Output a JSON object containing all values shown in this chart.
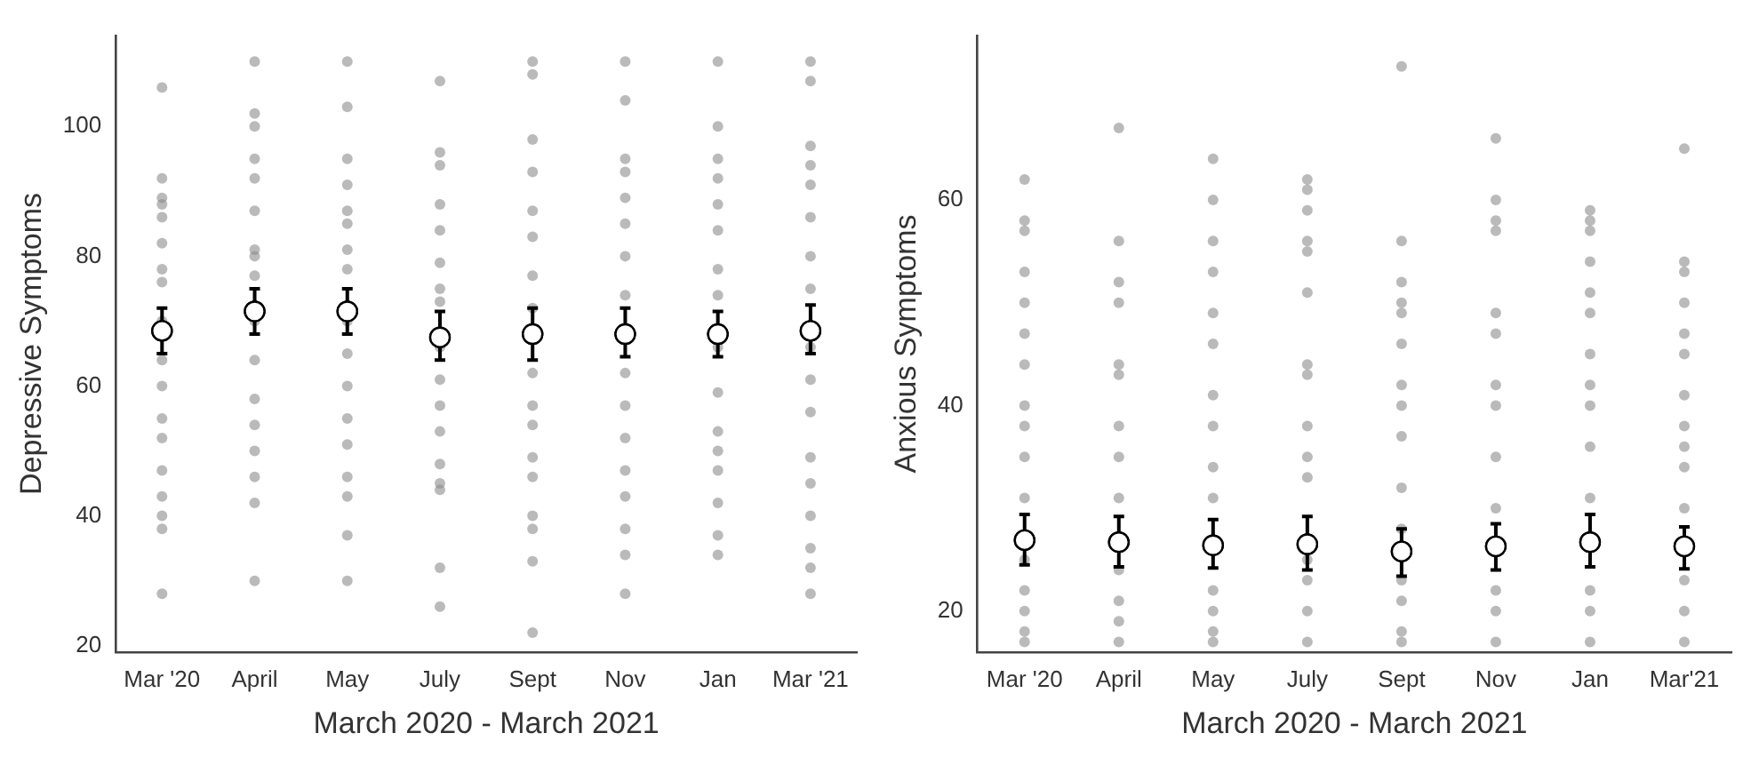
{
  "chart_data": [
    {
      "type": "scatter",
      "xlabel": "March 2020 - March 2021",
      "ylabel": "Depressive Symptoms",
      "categories": [
        "Mar '20",
        "April",
        "May",
        "July",
        "Sept",
        "Nov",
        "Jan",
        "Mar '21"
      ],
      "ylim": [
        19,
        114
      ],
      "yticks": [
        20,
        40,
        60,
        80,
        100
      ],
      "marker": "circle",
      "series": [
        {
          "type": "scatter",
          "color": "#8c8c8c",
          "x": [
            "Mar '20",
            "Mar '20",
            "Mar '20",
            "Mar '20",
            "Mar '20",
            "Mar '20",
            "Mar '20",
            "Mar '20",
            "Mar '20",
            "Mar '20",
            "Mar '20",
            "Mar '20",
            "Mar '20",
            "Mar '20",
            "Mar '20",
            "Mar '20",
            "Mar '20",
            "Mar '20",
            "April",
            "April",
            "April",
            "April",
            "April",
            "April",
            "April",
            "April",
            "April",
            "April",
            "April",
            "April",
            "April",
            "April",
            "April",
            "April",
            "April",
            "May",
            "May",
            "May",
            "May",
            "May",
            "May",
            "May",
            "May",
            "May",
            "May",
            "May",
            "May",
            "May",
            "May",
            "May",
            "May",
            "May",
            "July",
            "July",
            "July",
            "July",
            "July",
            "July",
            "July",
            "July",
            "July",
            "July",
            "July",
            "July",
            "July",
            "July",
            "July",
            "July",
            "July",
            "Sept",
            "Sept",
            "Sept",
            "Sept",
            "Sept",
            "Sept",
            "Sept",
            "Sept",
            "Sept",
            "Sept",
            "Sept",
            "Sept",
            "Sept",
            "Sept",
            "Sept",
            "Sept",
            "Sept",
            "Nov",
            "Nov",
            "Nov",
            "Nov",
            "Nov",
            "Nov",
            "Nov",
            "Nov",
            "Nov",
            "Nov",
            "Nov",
            "Nov",
            "Nov",
            "Nov",
            "Nov",
            "Nov",
            "Jan",
            "Jan",
            "Jan",
            "Jan",
            "Jan",
            "Jan",
            "Jan",
            "Jan",
            "Jan",
            "Jan",
            "Jan",
            "Jan",
            "Jan",
            "Jan",
            "Jan",
            "Jan",
            "Mar '21",
            "Mar '21",
            "Mar '21",
            "Mar '21",
            "Mar '21",
            "Mar '21",
            "Mar '21",
            "Mar '21",
            "Mar '21",
            "Mar '21",
            "Mar '21",
            "Mar '21",
            "Mar '21",
            "Mar '21",
            "Mar '21",
            "Mar '21",
            "Mar '21"
          ],
          "values": [
            106,
            92,
            89,
            88,
            86,
            82,
            78,
            76,
            70,
            64,
            60,
            55,
            52,
            47,
            43,
            40,
            38,
            28,
            110,
            102,
            100,
            95,
            92,
            87,
            81,
            80,
            77,
            70,
            64,
            58,
            54,
            50,
            46,
            42,
            30,
            110,
            103,
            95,
            91,
            87,
            85,
            81,
            78,
            70,
            65,
            60,
            55,
            51,
            46,
            43,
            37,
            30,
            107,
            96,
            94,
            88,
            84,
            79,
            75,
            73,
            66,
            61,
            57,
            53,
            48,
            45,
            44,
            32,
            26,
            110,
            108,
            98,
            93,
            87,
            83,
            77,
            72,
            62,
            57,
            54,
            49,
            46,
            40,
            38,
            33,
            22,
            110,
            104,
            95,
            93,
            89,
            85,
            80,
            74,
            62,
            57,
            52,
            47,
            43,
            38,
            34,
            28,
            110,
            100,
            95,
            92,
            88,
            84,
            78,
            74,
            66,
            59,
            53,
            50,
            47,
            42,
            37,
            34,
            110,
            107,
            97,
            94,
            91,
            86,
            80,
            75,
            66,
            61,
            56,
            49,
            45,
            40,
            35,
            32,
            28
          ]
        },
        {
          "type": "scatter",
          "color": "#ffffff",
          "values": [
            68.5,
            71.5,
            71.5,
            67.5,
            68,
            68,
            68,
            68.5
          ],
          "errors": [
            [
              65,
              72
            ],
            [
              68,
              75
            ],
            [
              68,
              75
            ],
            [
              64,
              71.5
            ],
            [
              64,
              72
            ],
            [
              64.5,
              72
            ],
            [
              64.5,
              71.5
            ],
            [
              65,
              72.5
            ]
          ]
        }
      ]
    },
    {
      "type": "scatter",
      "xlabel": "March 2020 - March 2021",
      "ylabel": "Anxious Symptoms",
      "categories": [
        "Mar '20",
        "April",
        "May",
        "July",
        "Sept",
        "Nov",
        "Jan",
        "Mar'21"
      ],
      "ylim": [
        16,
        76
      ],
      "yticks": [
        20,
        40,
        60
      ],
      "marker": "circle",
      "series": [
        {
          "type": "scatter",
          "color": "#8c8c8c",
          "x": [
            "Mar '20",
            "Mar '20",
            "Mar '20",
            "Mar '20",
            "Mar '20",
            "Mar '20",
            "Mar '20",
            "Mar '20",
            "Mar '20",
            "Mar '20",
            "Mar '20",
            "Mar '20",
            "Mar '20",
            "Mar '20",
            "Mar '20",
            "Mar '20",
            "April",
            "April",
            "April",
            "April",
            "April",
            "April",
            "April",
            "April",
            "April",
            "April",
            "April",
            "April",
            "April",
            "May",
            "May",
            "May",
            "May",
            "May",
            "May",
            "May",
            "May",
            "May",
            "May",
            "May",
            "May",
            "May",
            "May",
            "July",
            "July",
            "July",
            "July",
            "July",
            "July",
            "July",
            "July",
            "July",
            "July",
            "July",
            "July",
            "July",
            "July",
            "July",
            "Sept",
            "Sept",
            "Sept",
            "Sept",
            "Sept",
            "Sept",
            "Sept",
            "Sept",
            "Sept",
            "Sept",
            "Sept",
            "Sept",
            "Sept",
            "Sept",
            "Sept",
            "Nov",
            "Nov",
            "Nov",
            "Nov",
            "Nov",
            "Nov",
            "Nov",
            "Nov",
            "Nov",
            "Nov",
            "Nov",
            "Nov",
            "Nov",
            "Jan",
            "Jan",
            "Jan",
            "Jan",
            "Jan",
            "Jan",
            "Jan",
            "Jan",
            "Jan",
            "Jan",
            "Jan",
            "Jan",
            "Jan",
            "Jan",
            "Mar'21",
            "Mar'21",
            "Mar'21",
            "Mar'21",
            "Mar'21",
            "Mar'21",
            "Mar'21",
            "Mar'21",
            "Mar'21",
            "Mar'21",
            "Mar'21",
            "Mar'21",
            "Mar'21",
            "Mar'21"
          ],
          "values": [
            62,
            58,
            57,
            53,
            50,
            47,
            44,
            40,
            38,
            35,
            31,
            25,
            22,
            20,
            18,
            17,
            67,
            56,
            52,
            50,
            44,
            43,
            38,
            35,
            31,
            24,
            21,
            19,
            17,
            64,
            60,
            56,
            53,
            49,
            46,
            41,
            38,
            34,
            31,
            22,
            20,
            18,
            17,
            62,
            61,
            59,
            56,
            55,
            51,
            44,
            43,
            38,
            35,
            33,
            25,
            23,
            20,
            17,
            73,
            56,
            52,
            50,
            49,
            46,
            42,
            40,
            37,
            32,
            28,
            23,
            21,
            18,
            17,
            66,
            60,
            58,
            57,
            49,
            47,
            42,
            40,
            35,
            30,
            22,
            20,
            17,
            59,
            58,
            57,
            54,
            51,
            49,
            45,
            42,
            40,
            36,
            31,
            22,
            20,
            17,
            65,
            54,
            53,
            50,
            47,
            45,
            41,
            38,
            36,
            34,
            30,
            23,
            20,
            17
          ]
        },
        {
          "type": "scatter",
          "color": "#ffffff",
          "values": [
            26.9,
            26.7,
            26.4,
            26.5,
            25.8,
            26.3,
            26.7,
            26.3
          ],
          "errors": [
            [
              24.5,
              29.4
            ],
            [
              24.3,
              29.2
            ],
            [
              24.2,
              28.9
            ],
            [
              24,
              29.2
            ],
            [
              23.4,
              28
            ],
            [
              24,
              28.5
            ],
            [
              24.3,
              29.4
            ],
            [
              24.1,
              28.2
            ]
          ]
        }
      ]
    }
  ]
}
